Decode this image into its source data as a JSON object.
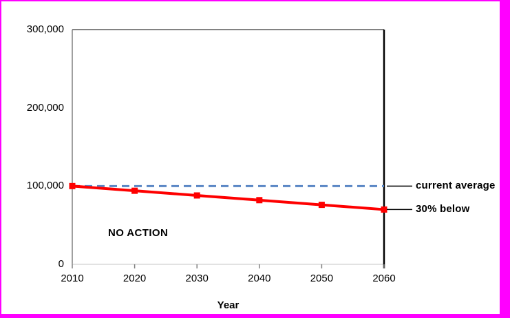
{
  "frame": {
    "border_color": "#ff00ff",
    "background_color": "#ffffff"
  },
  "chart_data": {
    "type": "line",
    "title": "",
    "xlabel": "Year",
    "ylabel": "",
    "xlim": [
      2010,
      2060
    ],
    "ylim": [
      0,
      300000
    ],
    "x_ticks": [
      2010,
      2020,
      2030,
      2040,
      2050,
      2060
    ],
    "x_tick_labels": [
      "2010",
      "2020",
      "2030",
      "2040",
      "2050",
      "2060"
    ],
    "y_ticks": [
      0,
      100000,
      200000,
      300000
    ],
    "y_tick_labels": [
      "0",
      "100,000",
      "200,000",
      "300,000"
    ],
    "grid": false,
    "legend_position": "none",
    "in_plot_label": "NO ACTION",
    "series": [
      {
        "name": "NO ACTION",
        "style": "solid",
        "color": "#fe0000",
        "line_width": 4,
        "marker": "square",
        "marker_color": "#fe0000",
        "x": [
          2010,
          2020,
          2030,
          2040,
          2050,
          2060
        ],
        "values": [
          100000,
          94000,
          88000,
          82000,
          76000,
          70000
        ]
      },
      {
        "name": "current average",
        "style": "dashed",
        "color": "#5b87c5",
        "line_width": 3,
        "marker": "none",
        "x": [
          2010,
          2020,
          2030,
          2040,
          2050,
          2060
        ],
        "values": [
          100000,
          100000,
          100000,
          100000,
          100000,
          100000
        ]
      }
    ],
    "annotations": [
      {
        "label": "current average",
        "y_value": 100000
      },
      {
        "label": "30% below",
        "y_value": 70000
      }
    ],
    "axis_colors": {
      "left": "#808080",
      "top": "#595959",
      "bottom": "#c4c4c4",
      "right": "#000000",
      "tick": "#808080",
      "leader_line": "#000000"
    }
  }
}
